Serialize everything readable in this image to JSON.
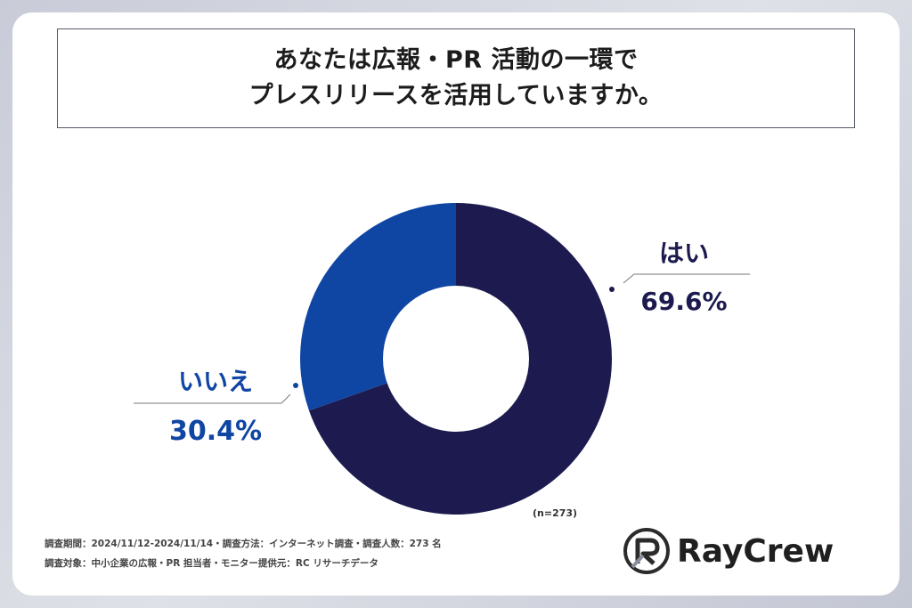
{
  "title": {
    "line1": "あなたは広報・PR 活動の一環で",
    "line2": "プレスリリースを活用していますか。"
  },
  "chart_data": {
    "type": "pie",
    "donut": true,
    "categories": [
      "はい",
      "いいえ"
    ],
    "values": [
      69.6,
      30.4
    ],
    "value_labels": [
      "69.6%",
      "30.4%"
    ],
    "colors": [
      "#1c1a4e",
      "#0f45a3"
    ],
    "label_colors": [
      "#1c1a4e",
      "#0f45a3"
    ],
    "sample_note": "(n=273)"
  },
  "footer": {
    "line1": "調査期間：2024/11/12-2024/11/14・調査方法：インターネット調査・調査人数：273 名",
    "line2": "調査対象：中小企業の広報・PR 担当者・モニター提供元：RC リサーチデータ"
  },
  "logo": {
    "text": "RayCrew",
    "icon": "raycrew-logo-icon"
  }
}
